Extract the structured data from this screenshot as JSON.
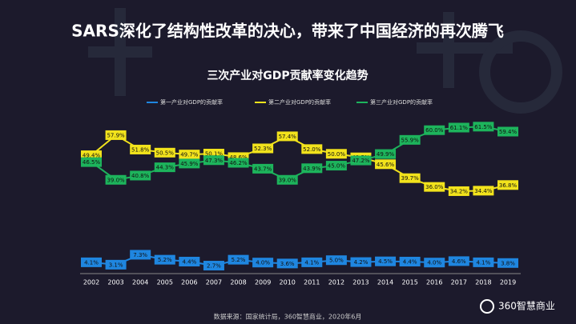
{
  "chart_data": {
    "type": "line",
    "headline": "SARS深化了结构性改革的决心，带来了中国经济的再次腾飞",
    "title": "三次产业对GDP贡献率变化趋势",
    "categories": [
      "2002",
      "2003",
      "2004",
      "2005",
      "2006",
      "2007",
      "2008",
      "2009",
      "2010",
      "2011",
      "2012",
      "2013",
      "2014",
      "2015",
      "2016",
      "2017",
      "2018",
      "2019"
    ],
    "series": [
      {
        "name": "第一产业对GDP的贡献率",
        "color": "#1f86e0",
        "values": [
          4.1,
          3.1,
          7.3,
          5.2,
          4.4,
          2.7,
          5.2,
          4.0,
          3.6,
          4.1,
          5.0,
          4.2,
          4.5,
          4.4,
          4.0,
          4.6,
          4.1,
          3.8
        ],
        "value_labels": [
          "4.1%",
          "3.1%",
          "7.3%",
          "5.2%",
          "4.4%",
          "2.7%",
          "5.2%",
          "4.0%",
          "3.6%",
          "4.1%",
          "5.0%",
          "4.2%",
          "4.5%",
          "4.4%",
          "4.0%",
          "4.6%",
          "4.1%",
          "3.8%"
        ]
      },
      {
        "name": "第二产业对GDP的贡献率",
        "color": "#f2e31c",
        "values": [
          49.4,
          57.9,
          51.8,
          50.5,
          49.7,
          50.1,
          48.6,
          52.3,
          57.4,
          52.0,
          50.0,
          48.5,
          45.6,
          39.7,
          36.0,
          34.2,
          34.4,
          36.8
        ],
        "value_labels": [
          "49.4%",
          "57.9%",
          "51.8%",
          "50.5%",
          "49.7%",
          "50.1%",
          "48.6%",
          "52.3%",
          "57.4%",
          "52.0%",
          "50.0%",
          "48.5%",
          "45.6%",
          "39.7%",
          "36.0%",
          "34.2%",
          "34.4%",
          "36.8%"
        ]
      },
      {
        "name": "第三产业对GDP的贡献率",
        "color": "#1db45c",
        "values": [
          46.5,
          39.0,
          40.8,
          44.3,
          45.9,
          47.3,
          46.2,
          43.7,
          39.0,
          43.9,
          45.0,
          47.2,
          49.9,
          55.9,
          60.0,
          61.1,
          61.5,
          59.4
        ],
        "value_labels": [
          "46.5%",
          "39.0%",
          "40.8%",
          "44.3%",
          "45.9%",
          "47.3%",
          "46.2%",
          "43.7%",
          "39.0%",
          "43.9%",
          "45.0%",
          "47.2%",
          "49.9%",
          "55.9%",
          "60.0%",
          "61.1%",
          "61.5%",
          "59.4%"
        ]
      }
    ],
    "ylim": [
      0,
      66
    ],
    "source": "数据来源：国家统计局，360智慧商业，2020年6月",
    "logo": "360智慧商业"
  }
}
